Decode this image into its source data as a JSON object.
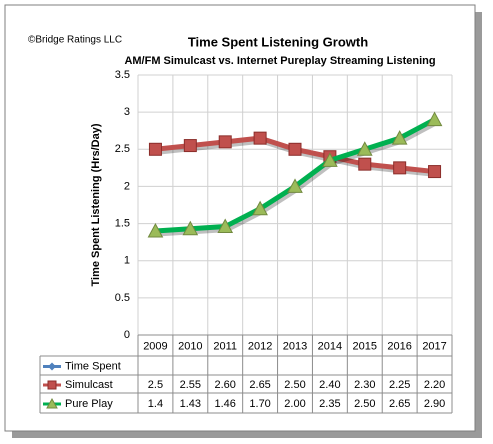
{
  "chart_data": {
    "type": "line",
    "credit": "©Bridge Ratings LLC",
    "title": "Time Spent Listening Growth",
    "subtitle": "AM/FM Simulcast vs. Internet Pureplay Streaming Listening",
    "y_label": "Time Spent Listening (Hrs/Day)",
    "categories": [
      "2009",
      "2010",
      "2011",
      "2012",
      "2013",
      "2014",
      "2015",
      "2016",
      "2017"
    ],
    "series": [
      {
        "name": "Time Spent",
        "color": "#4f81bd",
        "marker": "diamond",
        "values": [
          null,
          null,
          null,
          null,
          null,
          null,
          null,
          null,
          null
        ]
      },
      {
        "name": "Simulcast",
        "color": "#c0504d",
        "marker": "square",
        "values": [
          2.5,
          2.55,
          2.6,
          2.65,
          2.5,
          2.4,
          2.3,
          2.25,
          2.2
        ],
        "value_labels": [
          "2.5",
          "2.55",
          "2.60",
          "2.65",
          "2.50",
          "2.40",
          "2.30",
          "2.25",
          "2.20"
        ]
      },
      {
        "name": "Pure Play",
        "color": "#00b050",
        "marker": "triangle",
        "values": [
          1.4,
          1.43,
          1.46,
          1.7,
          2.0,
          2.35,
          2.5,
          2.65,
          2.9
        ],
        "value_labels": [
          "1.4",
          "1.43",
          "1.46",
          "1.70",
          "2.00",
          "2.35",
          "2.50",
          "2.65",
          "2.90"
        ]
      }
    ],
    "ylim": [
      0,
      3.5
    ],
    "yticks": [
      0,
      0.5,
      1,
      1.5,
      2,
      2.5,
      3,
      3.5
    ],
    "grid": true
  }
}
